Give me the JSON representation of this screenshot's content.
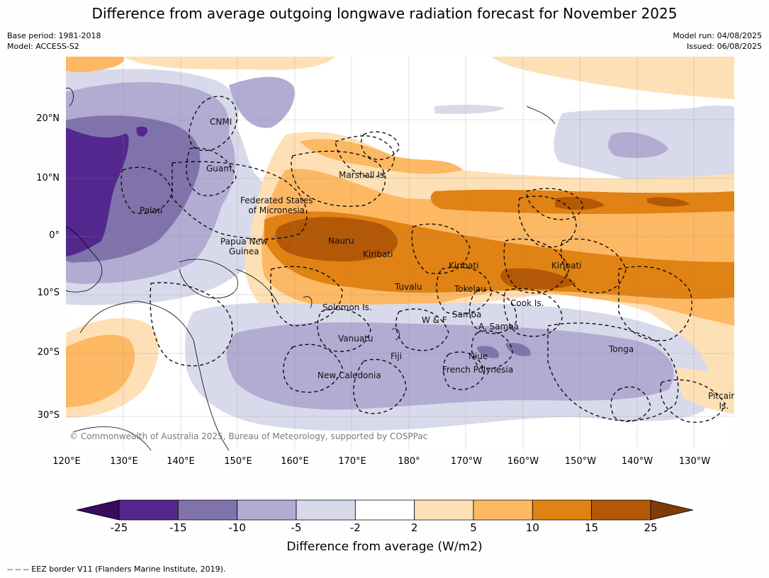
{
  "title": "Difference from average outgoing longwave radiation forecast for November 2025",
  "meta": {
    "base_period": "Base period: 1981-2018",
    "model": "Model: ACCESS-S2",
    "model_run": "Model run: 04/08/2025",
    "issued": "Issued: 06/08/2025"
  },
  "copyright": "© Commonwealth of Australia 2025, Bureau of Meteorology, supported by COSPPac",
  "axes": {
    "lat_ticks": [
      "20°N",
      "10°N",
      "0°",
      "10°S",
      "20°S",
      "30°S"
    ],
    "lon_ticks": [
      "120°E",
      "130°E",
      "140°E",
      "150°E",
      "160°E",
      "170°E",
      "180°",
      "170°W",
      "160°W",
      "150°W",
      "140°W",
      "130°W"
    ]
  },
  "places": [
    {
      "name": "CNMI"
    },
    {
      "name": "Guam"
    },
    {
      "name": "Marshall Is."
    },
    {
      "name": "Federated States\nof Micronesia"
    },
    {
      "name": "Palau"
    },
    {
      "name": "Nauru"
    },
    {
      "name": "Papua New\nGuinea"
    },
    {
      "name": "Kiribati"
    },
    {
      "name": "Kiribati"
    },
    {
      "name": "Kiribati"
    },
    {
      "name": "Tuvalu"
    },
    {
      "name": "Tokelau"
    },
    {
      "name": "Cook Is."
    },
    {
      "name": "Solomon Is."
    },
    {
      "name": "Samoa"
    },
    {
      "name": "W & F"
    },
    {
      "name": "A. Samoa"
    },
    {
      "name": "Vanuatu"
    },
    {
      "name": "Fiji"
    },
    {
      "name": "Niue"
    },
    {
      "name": "Tonga"
    },
    {
      "name": "French Polynesia"
    },
    {
      "name": "New Caledonia"
    },
    {
      "name": "Pitcairn\nIs."
    }
  ],
  "colorbar": {
    "labels": [
      "-25",
      "-15",
      "-10",
      "-5",
      "-2",
      "2",
      "5",
      "10",
      "15",
      "25"
    ],
    "colors": [
      "#3a0a5e",
      "#54278f",
      "#8073ac",
      "#b2abd2",
      "#d8daeb",
      "#ffffff",
      "#fee0b6",
      "#fdb863",
      "#e08214",
      "#b35806",
      "#7f3b08"
    ],
    "title": "Difference from average (W/m2)"
  },
  "footnote": "--  --  -- EEZ border V11 (Flanders Marine Institute, 2019)."
}
